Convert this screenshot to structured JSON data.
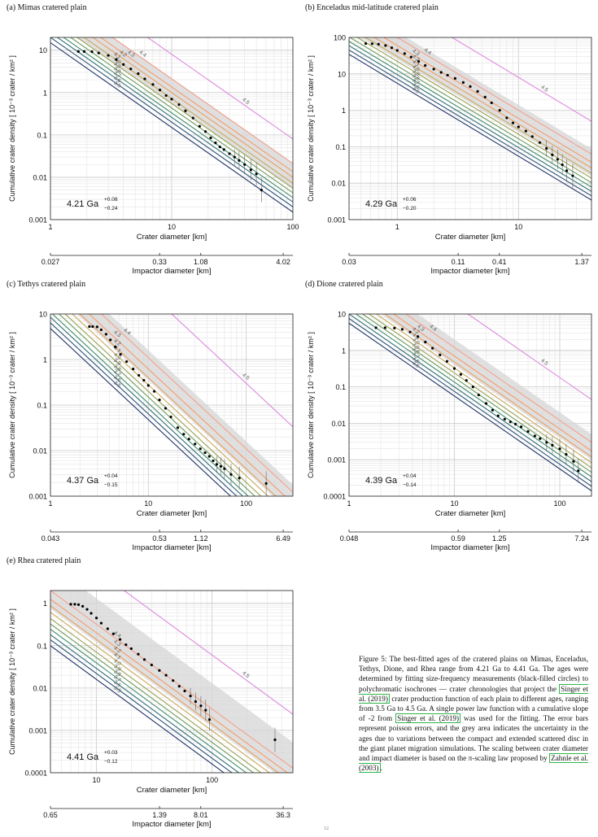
{
  "panels": [
    {
      "id": "a",
      "title": "(a) Mimas cratered plain",
      "ylabel": "Cumulative crater density  [ 10⁻³ crater / km² ]",
      "xlabel": "Crater diameter [km]",
      "x2label": "Impactor diameter [km]",
      "xlim": [
        1,
        100
      ],
      "ylim": [
        0.001,
        20
      ],
      "yticks": [
        "0.001",
        "0.01",
        "0.1",
        "1",
        "10"
      ],
      "xticks": [
        "1",
        "10",
        "100"
      ],
      "x2ticks": [
        "0.027",
        "0.33",
        "1.08",
        "4.02"
      ],
      "age": "4.21 Ga",
      "age_plus": "+0.08",
      "age_minus": "−0.24",
      "iso_labels": [
        "4.5",
        "4.4",
        "4.3",
        "4.2",
        "4.1",
        "4.0",
        "3.9",
        "3.8",
        "3.7",
        "3.6",
        "3.5"
      ]
    },
    {
      "id": "b",
      "title": "(b) Enceladus mid-latitude cratered plain",
      "ylabel": "Cumulative crater density  [ 10⁻³ crater / km² ]",
      "xlabel": "Crater diameter [km]",
      "x2label": "Impactor diameter [km]",
      "xlim": [
        0.4,
        40
      ],
      "ylim": [
        0.001,
        100
      ],
      "yticks": [
        "0.001",
        "0.01",
        "0.1",
        "1",
        "10",
        "100"
      ],
      "xticks": [
        "1",
        "10"
      ],
      "x2ticks": [
        "0.03",
        "0.11",
        "0.41",
        "1.37"
      ],
      "age": "4.29 Ga",
      "age_plus": "+0.06",
      "age_minus": "−0.20",
      "iso_labels": [
        "4.5",
        "4.4",
        "4.3",
        "4.2",
        "4.1",
        "4.0",
        "3.9",
        "3.8",
        "3.7",
        "3.6",
        "3.5"
      ]
    },
    {
      "id": "c",
      "title": "(c) Tethys cratered plain",
      "ylabel": "Cumulative crater density  [ 10⁻³ crater / km² ]",
      "xlabel": "Crater diameter [km]",
      "x2label": "Impactor diameter [km]",
      "xlim": [
        1,
        300
      ],
      "ylim": [
        0.001,
        10
      ],
      "yticks": [
        "0.001",
        "0.01",
        "0.1",
        "1",
        "10"
      ],
      "xticks": [
        "1",
        "10",
        "100"
      ],
      "x2ticks": [
        "0.043",
        "0.53",
        "1.12",
        "6.49"
      ],
      "age": "4.37 Ga",
      "age_plus": "+0.04",
      "age_minus": "−0.15",
      "iso_labels": [
        "4.5",
        "4.4",
        "4.3",
        "4.2",
        "4.1",
        "4.0",
        "3.9",
        "3.8",
        "3.7",
        "3.6",
        "3.5"
      ]
    },
    {
      "id": "d",
      "title": "(d) Dione cratered plain",
      "ylabel": "Cumulative crater density  [ 10⁻³ crater / km² ]",
      "xlabel": "Crater diameter [km]",
      "x2label": "Impactor diameter [km]",
      "xlim": [
        1,
        200
      ],
      "ylim": [
        0.0001,
        10
      ],
      "yticks": [
        "0.0001",
        "0.001",
        "0.01",
        "0.1",
        "1",
        "10"
      ],
      "xticks": [
        "1",
        "10",
        "100"
      ],
      "x2ticks": [
        "0.048",
        "0.59",
        "1.25",
        "7.24"
      ],
      "age": "4.39 Ga",
      "age_plus": "+0.04",
      "age_minus": "−0.14",
      "iso_labels": [
        "4.5",
        "4.4",
        "4.3",
        "4.2",
        "4.1",
        "4.0",
        "3.9",
        "3.8",
        "3.7",
        "3.6",
        "3.5"
      ]
    },
    {
      "id": "e",
      "title": "(e) Rhea cratered plain",
      "ylabel": "Cumulative crater density  [ 10⁻³ crater / km² ]",
      "xlabel": "Crater diameter [km]",
      "x2label": "Impactor diameter [km]",
      "xlim": [
        4,
        500
      ],
      "ylim": [
        0.0001,
        2
      ],
      "yticks": [
        "0.0001",
        "0.001",
        "0.01",
        "0.1",
        "1"
      ],
      "xticks": [
        "10",
        "100"
      ],
      "x2ticks": [
        "0.65",
        "1.39",
        "8.01",
        "36.3"
      ],
      "age": "4.41 Ga",
      "age_plus": "+0.03",
      "age_minus": "−0.12",
      "iso_labels": [
        "4.5",
        "4.4",
        "4.3",
        "4.2",
        "4.1",
        "4.0",
        "3.9",
        "3.8",
        "3.7",
        "3.6",
        "3.5"
      ]
    }
  ],
  "chart_data": [
    {
      "type": "scatter",
      "title": "(a) Mimas cratered plain",
      "xlabel": "Crater diameter [km]",
      "ylabel": "Cumulative crater density  [ 10⁻³ crater / km² ]",
      "xscale": "log",
      "yscale": "log",
      "xlim": [
        1,
        100
      ],
      "ylim": [
        0.001,
        20
      ],
      "isochrone_slope": -2,
      "isochrone_ref_D": 10,
      "isochrones": [
        {
          "age": "4.5",
          "y_at_ref": 8.0,
          "color": "#dd88dd"
        },
        {
          "age": "4.4",
          "y_at_ref": 2.1,
          "color": "#f5a08a"
        },
        {
          "age": "4.3",
          "y_at_ref": 1.35,
          "color": "#f59a6a"
        },
        {
          "age": "4.2",
          "y_at_ref": 1.0,
          "color": "#e8a060"
        },
        {
          "age": "4.1",
          "y_at_ref": 0.72,
          "color": "#c9a85a"
        },
        {
          "age": "4.0",
          "y_at_ref": 0.55,
          "color": "#9aa050"
        },
        {
          "age": "3.9",
          "y_at_ref": 0.43,
          "color": "#6b9a58"
        },
        {
          "age": "3.8",
          "y_at_ref": 0.33,
          "color": "#3f8c6a"
        },
        {
          "age": "3.7",
          "y_at_ref": 0.26,
          "color": "#2e6e76"
        },
        {
          "age": "3.6",
          "y_at_ref": 0.2,
          "color": "#2a5078"
        },
        {
          "age": "3.5",
          "y_at_ref": 0.15,
          "color": "#1f3266"
        }
      ],
      "uncertainty_band": {
        "upper_at_ref": 2.2,
        "lower_at_ref": 0.55
      },
      "series": [
        {
          "name": "",
          "x": [
            1.7,
            1.9,
            2.2,
            2.5,
            3.0,
            3.5,
            4.0,
            4.6,
            5.3,
            6.0,
            7.0,
            8.0,
            9.0,
            10.0,
            11.5,
            13.0,
            15.0,
            17.0,
            19.0,
            21.0,
            23.0,
            25.0,
            27.0,
            30.0,
            33.0,
            36.0,
            40.0,
            45.0,
            50.0,
            55.0
          ],
          "y": [
            9.3,
            9.3,
            9.2,
            8.6,
            7.5,
            6.0,
            4.6,
            3.6,
            2.8,
            2.1,
            1.55,
            1.15,
            0.85,
            0.7,
            0.52,
            0.37,
            0.25,
            0.16,
            0.12,
            0.085,
            0.065,
            0.052,
            0.045,
            0.036,
            0.03,
            0.025,
            0.02,
            0.015,
            0.012,
            0.005
          ]
        }
      ]
    },
    {
      "type": "scatter",
      "title": "(b) Enceladus mid-latitude cratered plain",
      "xlabel": "Crater diameter [km]",
      "ylabel": "Cumulative crater density  [ 10⁻³ crater / km² ]",
      "xscale": "log",
      "yscale": "log",
      "xlim": [
        0.4,
        40
      ],
      "ylim": [
        0.001,
        100
      ],
      "isochrone_slope": -2,
      "isochrone_ref_D": 10,
      "isochrones": [
        {
          "age": "4.5",
          "y_at_ref": 8.0,
          "color": "#dd88dd"
        },
        {
          "age": "4.4",
          "y_at_ref": 1.0,
          "color": "#f5a08a"
        },
        {
          "age": "4.3",
          "y_at_ref": 0.6,
          "color": "#f59a6a"
        },
        {
          "age": "4.2",
          "y_at_ref": 0.42,
          "color": "#e8a060"
        },
        {
          "age": "4.1",
          "y_at_ref": 0.3,
          "color": "#c9a85a"
        },
        {
          "age": "4.0",
          "y_at_ref": 0.22,
          "color": "#9aa050"
        },
        {
          "age": "3.9",
          "y_at_ref": 0.165,
          "color": "#6b9a58"
        },
        {
          "age": "3.8",
          "y_at_ref": 0.125,
          "color": "#3f8c6a"
        },
        {
          "age": "3.7",
          "y_at_ref": 0.095,
          "color": "#2e6e76"
        },
        {
          "age": "3.6",
          "y_at_ref": 0.072,
          "color": "#2a5078"
        },
        {
          "age": "3.5",
          "y_at_ref": 0.055,
          "color": "#1f3266"
        }
      ],
      "uncertainty_band": {
        "upper_at_ref": 1.4,
        "lower_at_ref": 0.25
      },
      "series": [
        {
          "name": "",
          "x": [
            0.55,
            0.62,
            0.7,
            0.8,
            0.9,
            1.0,
            1.15,
            1.3,
            1.5,
            1.7,
            2.0,
            2.3,
            2.6,
            3.0,
            3.5,
            4.0,
            4.6,
            5.3,
            6.0,
            7.0,
            8.0,
            9.0,
            10.0,
            11.5,
            13.0,
            15.0,
            17.0,
            19.0,
            21.0,
            23.0,
            25.0,
            28.0
          ],
          "y": [
            68,
            67,
            65,
            60,
            52,
            44,
            36,
            29,
            22,
            17,
            13.5,
            11,
            9.2,
            7.5,
            5.8,
            4.5,
            3.3,
            2.3,
            1.6,
            1.0,
            0.62,
            0.45,
            0.35,
            0.27,
            0.19,
            0.13,
            0.09,
            0.06,
            0.045,
            0.032,
            0.022,
            0.016
          ]
        }
      ]
    },
    {
      "type": "scatter",
      "title": "(c) Tethys cratered plain",
      "xlabel": "Crater diameter [km]",
      "ylabel": "Cumulative crater density  [ 10⁻³ crater / km² ]",
      "xscale": "log",
      "yscale": "log",
      "xlim": [
        1,
        300
      ],
      "ylim": [
        0.001,
        10
      ],
      "isochrone_slope": -2,
      "isochrone_ref_D": 10,
      "isochrones": [
        {
          "age": "4.5",
          "y_at_ref": 30.0,
          "color": "#dd88dd"
        },
        {
          "age": "4.4",
          "y_at_ref": 1.1,
          "color": "#f5a08a"
        },
        {
          "age": "4.3",
          "y_at_ref": 0.62,
          "color": "#f59a6a"
        },
        {
          "age": "4.2",
          "y_at_ref": 0.4,
          "color": "#e8a060"
        },
        {
          "age": "4.1",
          "y_at_ref": 0.28,
          "color": "#c9a85a"
        },
        {
          "age": "4.0",
          "y_at_ref": 0.2,
          "color": "#9aa050"
        },
        {
          "age": "3.9",
          "y_at_ref": 0.15,
          "color": "#6b9a58"
        },
        {
          "age": "3.8",
          "y_at_ref": 0.11,
          "color": "#3f8c6a"
        },
        {
          "age": "3.7",
          "y_at_ref": 0.085,
          "color": "#2e6e76"
        },
        {
          "age": "3.6",
          "y_at_ref": 0.064,
          "color": "#2a5078"
        },
        {
          "age": "3.5",
          "y_at_ref": 0.048,
          "color": "#1f3266"
        }
      ],
      "uncertainty_band": {
        "upper_at_ref": 1.6,
        "lower_at_ref": 0.35
      },
      "series": [
        {
          "name": "",
          "x": [
            2.5,
            2.7,
            3.0,
            3.3,
            3.7,
            4.1,
            4.6,
            5.2,
            6.0,
            7.0,
            8.0,
            9.0,
            10.0,
            11.5,
            13.0,
            15.0,
            17.0,
            20.0,
            23.0,
            26.0,
            30.0,
            34.0,
            38.0,
            42.0,
            46.0,
            50.0,
            55.0,
            60.0,
            70.0,
            85.0,
            160.0
          ],
          "y": [
            5.3,
            5.3,
            5.2,
            4.5,
            3.6,
            2.7,
            1.9,
            1.3,
            0.9,
            0.62,
            0.45,
            0.35,
            0.27,
            0.2,
            0.13,
            0.085,
            0.055,
            0.032,
            0.023,
            0.018,
            0.014,
            0.011,
            0.009,
            0.0075,
            0.006,
            0.005,
            0.0045,
            0.004,
            0.003,
            0.0025,
            0.0019
          ]
        }
      ]
    },
    {
      "type": "scatter",
      "title": "(d) Dione cratered plain",
      "xlabel": "Crater diameter [km]",
      "ylabel": "Cumulative crater density  [ 10⁻³ crater / km² ]",
      "xscale": "log",
      "yscale": "log",
      "xlim": [
        1,
        200
      ],
      "ylim": [
        0.0001,
        10
      ],
      "isochrone_slope": -2,
      "isochrone_ref_D": 10,
      "isochrones": [
        {
          "age": "4.5",
          "y_at_ref": 18.0,
          "color": "#dd88dd"
        },
        {
          "age": "4.4",
          "y_at_ref": 1.2,
          "color": "#f5a08a"
        },
        {
          "age": "4.3",
          "y_at_ref": 0.7,
          "color": "#f59a6a"
        },
        {
          "age": "4.2",
          "y_at_ref": 0.48,
          "color": "#e8a060"
        },
        {
          "age": "4.1",
          "y_at_ref": 0.33,
          "color": "#c9a85a"
        },
        {
          "age": "4.0",
          "y_at_ref": 0.24,
          "color": "#9aa050"
        },
        {
          "age": "3.9",
          "y_at_ref": 0.18,
          "color": "#6b9a58"
        },
        {
          "age": "3.8",
          "y_at_ref": 0.135,
          "color": "#3f8c6a"
        },
        {
          "age": "3.7",
          "y_at_ref": 0.1,
          "color": "#2e6e76"
        },
        {
          "age": "3.6",
          "y_at_ref": 0.075,
          "color": "#2a5078"
        },
        {
          "age": "3.5",
          "y_at_ref": 0.056,
          "color": "#1f3266"
        }
      ],
      "uncertainty_band": {
        "upper_at_ref": 2.0,
        "lower_at_ref": 0.4
      },
      "series": [
        {
          "name": "",
          "x": [
            1.8,
            2.2,
            2.7,
            3.2,
            3.8,
            4.5,
            5.3,
            6.2,
            7.3,
            8.5,
            10.0,
            11.5,
            13.0,
            15.0,
            17.0,
            20.0,
            23.0,
            26.0,
            30.0,
            34.0,
            38.0,
            43.0,
            50.0,
            58.0,
            65.0,
            75.0,
            85.0,
            100.0,
            115.0,
            135.0,
            150.0
          ],
          "y": [
            4.2,
            4.2,
            4.1,
            3.8,
            3.2,
            2.4,
            1.7,
            1.15,
            0.75,
            0.5,
            0.32,
            0.22,
            0.15,
            0.1,
            0.06,
            0.035,
            0.023,
            0.016,
            0.013,
            0.011,
            0.0095,
            0.008,
            0.006,
            0.0045,
            0.0038,
            0.003,
            0.0025,
            0.002,
            0.0014,
            0.0009,
            0.0005
          ]
        }
      ]
    },
    {
      "type": "scatter",
      "title": "(e) Rhea cratered plain",
      "xlabel": "Crater diameter [km]",
      "ylabel": "Cumulative crater density  [ 10⁻³ crater / km² ]",
      "xscale": "log",
      "yscale": "log",
      "xlim": [
        4,
        500
      ],
      "ylim": [
        0.0001,
        2
      ],
      "isochrone_slope": -2,
      "isochrone_ref_D": 10,
      "isochrones": [
        {
          "age": "4.5",
          "y_at_ref": 6.0,
          "color": "#dd88dd"
        },
        {
          "age": "4.4",
          "y_at_ref": 0.32,
          "color": "#f5a08a"
        },
        {
          "age": "4.3",
          "y_at_ref": 0.2,
          "color": "#f59a6a"
        },
        {
          "age": "4.2",
          "y_at_ref": 0.14,
          "color": "#e8a060"
        },
        {
          "age": "4.1",
          "y_at_ref": 0.098,
          "color": "#c9a85a"
        },
        {
          "age": "4.0",
          "y_at_ref": 0.07,
          "color": "#9aa050"
        },
        {
          "age": "3.9",
          "y_at_ref": 0.052,
          "color": "#6b9a58"
        },
        {
          "age": "3.8",
          "y_at_ref": 0.039,
          "color": "#3f8c6a"
        },
        {
          "age": "3.7",
          "y_at_ref": 0.029,
          "color": "#2e6e76"
        },
        {
          "age": "3.6",
          "y_at_ref": 0.022,
          "color": "#2a5078"
        },
        {
          "age": "3.5",
          "y_at_ref": 0.016,
          "color": "#1f3266"
        }
      ],
      "uncertainty_band": {
        "upper_at_ref": 1.3,
        "lower_at_ref": 0.12
      },
      "series": [
        {
          "name": "",
          "x": [
            6.0,
            6.5,
            7.0,
            7.6,
            8.3,
            9.0,
            10.0,
            11.0,
            12.5,
            14.0,
            16.0,
            18.0,
            20.0,
            23.0,
            26.0,
            30.0,
            35.0,
            40.0,
            46.0,
            52.0,
            58.0,
            65.0,
            72.0,
            80.0,
            88.0,
            95.0,
            350.0
          ],
          "y": [
            0.95,
            0.95,
            0.93,
            0.85,
            0.72,
            0.58,
            0.45,
            0.34,
            0.25,
            0.19,
            0.14,
            0.105,
            0.085,
            0.063,
            0.047,
            0.035,
            0.026,
            0.02,
            0.015,
            0.011,
            0.0085,
            0.0065,
            0.0048,
            0.0038,
            0.003,
            0.0018,
            0.0006
          ]
        }
      ]
    }
  ],
  "caption": {
    "text_1": "Figure 5: The best-fitted ages of the cratered plains on Mimas, Enceladus, Tethys, Dione, and Rhea range from 4.21 Ga to 4.41 Ga. The ages were determined by fitting size-frequency measurements (black-filled circles) to polychromatic isochrones — crater chronologies that project the ",
    "cite_1": "Singer et al. (2019)",
    "text_2": " crater production function of each plain to different ages, ranging from 3.5 Ga to 4.5 Ga. A single power law function with a cumulative slope of -2 from ",
    "cite_2": "Singer et al. (2019)",
    "text_3": " was used for the fitting. The error bars represent poisson errors, and the grey area indicates the uncertainty in the ages due to variations between the compact and extended scattered disc in the giant planet migration simulations. The scaling between crater diameter and impact diameter is based on the π-scaling law proposed by ",
    "cite_3": "Zahnle et al. (2003)",
    "text_4": "."
  },
  "page_mark": "12"
}
